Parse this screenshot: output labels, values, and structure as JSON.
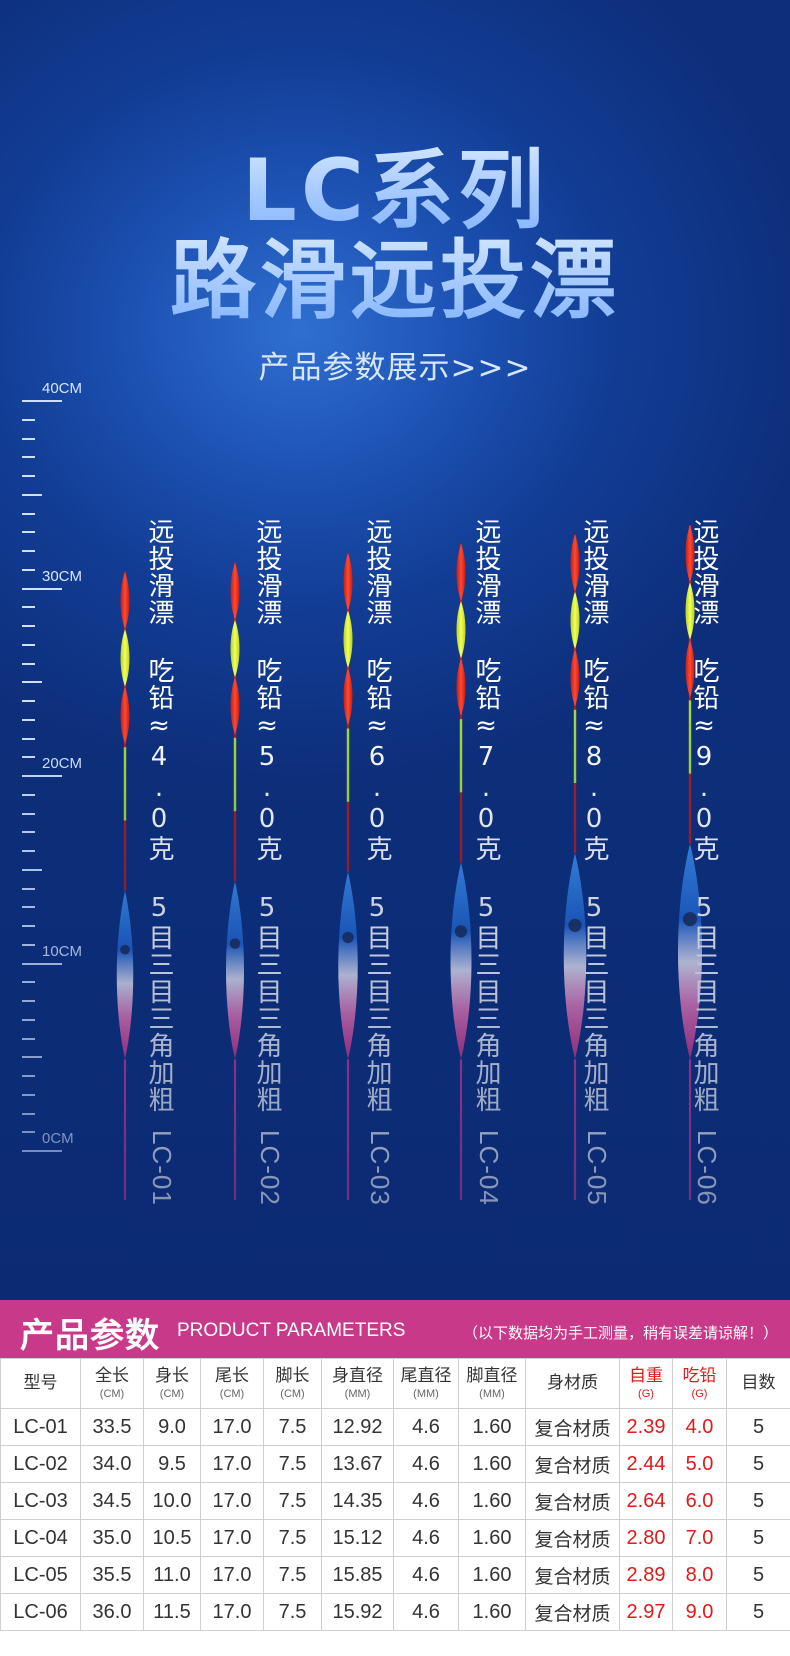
{
  "hero": {
    "title_line1": "LC系列",
    "title_line2": "路滑远投漂",
    "subtitle": "产品参数展示>>>"
  },
  "ruler": {
    "labels": [
      "40CM",
      "30CM",
      "20CM",
      "10CM",
      "0CM"
    ]
  },
  "floats": [
    {
      "desc": "远投滑漂 吃铅≈4.0克 5目三目三角加粗",
      "model": "LC-01"
    },
    {
      "desc": "远投滑漂 吃铅≈5.0克 5目三目三角加粗",
      "model": "LC-02"
    },
    {
      "desc": "远投滑漂 吃铅≈6.0克 5目三目三角加粗",
      "model": "LC-03"
    },
    {
      "desc": "远投滑漂 吃铅≈7.0克 5目三目三角加粗",
      "model": "LC-04"
    },
    {
      "desc": "远投滑漂 吃铅≈8.0克 5目三目三角加粗",
      "model": "LC-05"
    },
    {
      "desc": "远投滑漂 吃铅≈9.0克 5目三目三角加粗",
      "model": "LC-06"
    }
  ],
  "params": {
    "heading": "产品参数",
    "heading_en": "PRODUCT PARAMETERS",
    "note": "（以下数据均为手工测量，稍有误差请谅解！）",
    "columns": [
      {
        "label": "型号",
        "unit": ""
      },
      {
        "label": "全长",
        "unit": "(CM)"
      },
      {
        "label": "身长",
        "unit": "(CM)"
      },
      {
        "label": "尾长",
        "unit": "(CM)"
      },
      {
        "label": "脚长",
        "unit": "(CM)"
      },
      {
        "label": "身直径",
        "unit": "(MM)"
      },
      {
        "label": "尾直径",
        "unit": "(MM)"
      },
      {
        "label": "脚直径",
        "unit": "(MM)"
      },
      {
        "label": "身材质",
        "unit": ""
      },
      {
        "label": "自重",
        "unit": "(G)"
      },
      {
        "label": "吃铅",
        "unit": "(G)"
      },
      {
        "label": "目数",
        "unit": ""
      }
    ],
    "rows": [
      [
        "LC-01",
        "33.5",
        "9.0",
        "17.0",
        "7.5",
        "12.92",
        "4.6",
        "1.60",
        "复合材质",
        "2.39",
        "4.0",
        "5"
      ],
      [
        "LC-02",
        "34.0",
        "9.5",
        "17.0",
        "7.5",
        "13.67",
        "4.6",
        "1.60",
        "复合材质",
        "2.44",
        "5.0",
        "5"
      ],
      [
        "LC-03",
        "34.5",
        "10.0",
        "17.0",
        "7.5",
        "14.35",
        "4.6",
        "1.60",
        "复合材质",
        "2.64",
        "6.0",
        "5"
      ],
      [
        "LC-04",
        "35.0",
        "10.5",
        "17.0",
        "7.5",
        "15.12",
        "4.6",
        "1.60",
        "复合材质",
        "2.80",
        "7.0",
        "5"
      ],
      [
        "LC-05",
        "35.5",
        "11.0",
        "17.0",
        "7.5",
        "15.85",
        "4.6",
        "1.60",
        "复合材质",
        "2.89",
        "8.0",
        "5"
      ],
      [
        "LC-06",
        "36.0",
        "11.5",
        "17.0",
        "7.5",
        "15.92",
        "4.6",
        "1.60",
        "复合材质",
        "2.97",
        "9.0",
        "5"
      ]
    ]
  },
  "colors": {
    "band": "#c83a89",
    "accent_red": "#e01a1a",
    "float_red": "#f0301e",
    "float_yellow": "#e8f530",
    "float_body_top": "#2d7fe0",
    "float_body_bottom": "#e0358c"
  },
  "icons": {
    "logo": "fish-logo-icon"
  }
}
